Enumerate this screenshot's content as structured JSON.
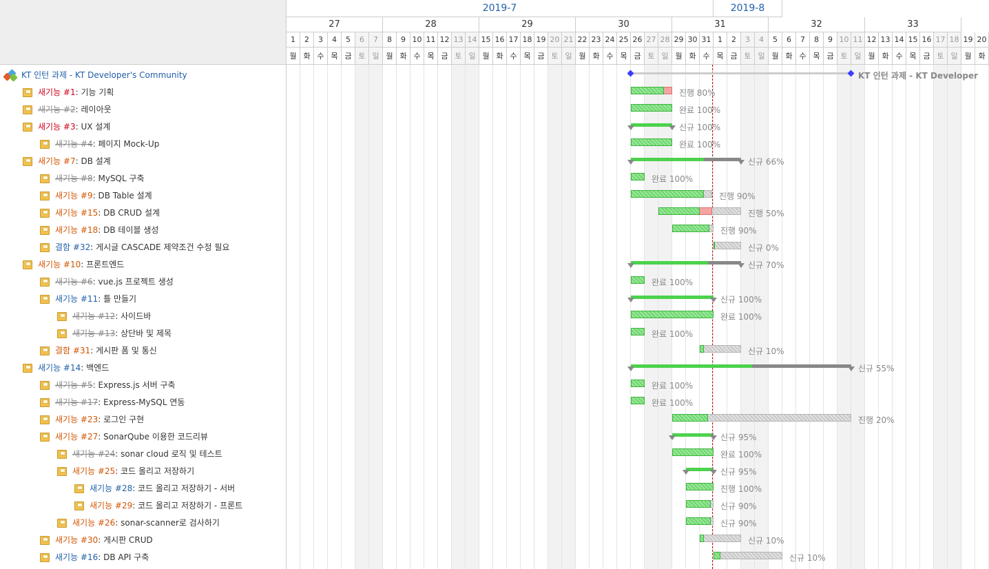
{
  "months": [
    {
      "label": "2019-7",
      "from": 0,
      "to": 31
    },
    {
      "label": "2019-8",
      "from": 31,
      "to": 36
    }
  ],
  "weeks": [
    {
      "label": "27",
      "from": 0,
      "to": 7
    },
    {
      "label": "28",
      "from": 7,
      "to": 14
    },
    {
      "label": "29",
      "from": 14,
      "to": 21
    },
    {
      "label": "30",
      "from": 21,
      "to": 28
    },
    {
      "label": "31",
      "from": 28,
      "to": 35
    },
    {
      "label": "32",
      "from": 35,
      "to": 42
    },
    {
      "label": "33",
      "from": 42,
      "to": 49
    }
  ],
  "days": [
    "1",
    "2",
    "3",
    "4",
    "5",
    "6",
    "7",
    "8",
    "9",
    "10",
    "11",
    "12",
    "13",
    "14",
    "15",
    "16",
    "17",
    "18",
    "19",
    "20",
    "21",
    "22",
    "23",
    "24",
    "25",
    "26",
    "27",
    "28",
    "29",
    "30",
    "31",
    "1",
    "2",
    "3",
    "4",
    "5",
    "6",
    "7",
    "8",
    "9",
    "10",
    "11",
    "12",
    "13",
    "14",
    "15",
    "16",
    "17",
    "18",
    "19",
    "20"
  ],
  "dows": [
    "월",
    "화",
    "수",
    "목",
    "금",
    "토",
    "일"
  ],
  "today_index": 30.9,
  "project": {
    "name": "KT 인턴 과제 - KT Developer's Community",
    "bar_label": "KT 인턴 과제 - KT Developer",
    "start": 25,
    "end": 41
  },
  "issues": [
    {
      "depth": 1,
      "tracker": "새기능",
      "num": "#1",
      "cls": "red",
      "subject": "기능 기획",
      "start": 25,
      "end": 28,
      "done": 0.8,
      "late": true,
      "type": "task",
      "status": "진행",
      "pct": "80%"
    },
    {
      "depth": 1,
      "tracker": "새기능",
      "num": "#2",
      "cls": "closed",
      "subject": "레이아웃",
      "start": 25,
      "end": 28,
      "done": 1,
      "type": "task",
      "status": "완료",
      "pct": "100%"
    },
    {
      "depth": 1,
      "tracker": "새기능",
      "num": "#3",
      "cls": "red",
      "subject": "UX 설계",
      "start": 25,
      "end": 28,
      "done": 1,
      "type": "parent",
      "status": "신규",
      "pct": "100%"
    },
    {
      "depth": 2,
      "tracker": "새기능",
      "num": "#4",
      "cls": "closed",
      "subject": "페이지 Mock-Up",
      "start": 25,
      "end": 28,
      "done": 1,
      "type": "task",
      "status": "완료",
      "pct": "100%"
    },
    {
      "depth": 1,
      "tracker": "새기능",
      "num": "#7",
      "cls": "orange",
      "subject": "DB 설계",
      "start": 25,
      "end": 33,
      "done": 0.66,
      "type": "parent",
      "status": "신규",
      "pct": "66%"
    },
    {
      "depth": 2,
      "tracker": "새기능",
      "num": "#8",
      "cls": "closed",
      "subject": "MySQL 구축",
      "start": 25,
      "end": 26,
      "done": 1,
      "type": "task",
      "status": "완료",
      "pct": "100%"
    },
    {
      "depth": 2,
      "tracker": "새기능",
      "num": "#9",
      "cls": "orange",
      "subject": "DB Table 설계",
      "start": 25,
      "end": 30.9,
      "done": 0.9,
      "type": "task",
      "status": "진행",
      "pct": "90%"
    },
    {
      "depth": 2,
      "tracker": "새기능",
      "num": "#15",
      "cls": "orange",
      "subject": "DB CRUD 설계",
      "start": 27,
      "end": 33,
      "done": 0.5,
      "late": true,
      "lateEnd": 30.9,
      "type": "task",
      "status": "진행",
      "pct": "50%"
    },
    {
      "depth": 2,
      "tracker": "새기능",
      "num": "#18",
      "cls": "orange",
      "subject": "DB 테이블 생성",
      "start": 28,
      "end": 31,
      "done": 0.9,
      "type": "task",
      "status": "진행",
      "pct": "90%"
    },
    {
      "depth": 2,
      "tracker": "결함",
      "num": "#32",
      "cls": "blue",
      "subject": "게시글 CASCADE 제약조건 수정 필요",
      "start": 31,
      "end": 33,
      "done": 0,
      "type": "task",
      "status": "신규",
      "pct": "0%"
    },
    {
      "depth": 1,
      "tracker": "새기능",
      "num": "#10",
      "cls": "orange",
      "subject": "프론트엔드",
      "start": 25,
      "end": 33,
      "done": 0.7,
      "type": "parent",
      "status": "신규",
      "pct": "70%"
    },
    {
      "depth": 2,
      "tracker": "새기능",
      "num": "#6",
      "cls": "closed",
      "subject": "vue.js 프로젝트 생성",
      "start": 25,
      "end": 26,
      "done": 1,
      "type": "task",
      "status": "완료",
      "pct": "100%"
    },
    {
      "depth": 2,
      "tracker": "새기능",
      "num": "#11",
      "cls": "blue",
      "subject": "틀 만들기",
      "start": 25,
      "end": 31,
      "done": 1,
      "type": "parent",
      "status": "신규",
      "pct": "100%"
    },
    {
      "depth": 3,
      "tracker": "새기능",
      "num": "#12",
      "cls": "closed",
      "subject": "사이드바",
      "start": 25,
      "end": 31,
      "done": 1,
      "type": "task",
      "status": "완료",
      "pct": "100%"
    },
    {
      "depth": 3,
      "tracker": "새기능",
      "num": "#13",
      "cls": "closed",
      "subject": "상단바 및 제목",
      "start": 25,
      "end": 26,
      "done": 1,
      "type": "task",
      "status": "완료",
      "pct": "100%"
    },
    {
      "depth": 2,
      "tracker": "결함",
      "num": "#31",
      "cls": "orange",
      "subject": "게시판 폼 및 통신",
      "start": 30,
      "end": 33,
      "done": 0.1,
      "type": "task",
      "status": "신규",
      "pct": "10%"
    },
    {
      "depth": 1,
      "tracker": "새기능",
      "num": "#14",
      "cls": "blue",
      "subject": "백엔드",
      "start": 25,
      "end": 41,
      "done": 0.55,
      "type": "parent",
      "status": "신규",
      "pct": "55%"
    },
    {
      "depth": 2,
      "tracker": "새기능",
      "num": "#5",
      "cls": "closed",
      "subject": "Express.js 서버 구축",
      "start": 25,
      "end": 26,
      "done": 1,
      "type": "task",
      "status": "완료",
      "pct": "100%"
    },
    {
      "depth": 2,
      "tracker": "새기능",
      "num": "#17",
      "cls": "closed",
      "subject": "Express-MySQL 연동",
      "start": 25,
      "end": 26,
      "done": 1,
      "type": "task",
      "status": "완료",
      "pct": "100%"
    },
    {
      "depth": 2,
      "tracker": "새기능",
      "num": "#23",
      "cls": "orange",
      "subject": "로그인 구현",
      "start": 28,
      "end": 41,
      "done": 0.2,
      "type": "task",
      "status": "진행",
      "pct": "20%"
    },
    {
      "depth": 2,
      "tracker": "새기능",
      "num": "#27",
      "cls": "orange",
      "subject": "SonarQube 이용한 코드리뷰",
      "start": 28,
      "end": 31,
      "done": 0.95,
      "type": "parent",
      "status": "신규",
      "pct": "95%"
    },
    {
      "depth": 3,
      "tracker": "새기능",
      "num": "#24",
      "cls": "closed",
      "subject": "sonar cloud 로직 및 테스트",
      "start": 28,
      "end": 31,
      "done": 1,
      "type": "task",
      "status": "완료",
      "pct": "100%"
    },
    {
      "depth": 3,
      "tracker": "새기능",
      "num": "#25",
      "cls": "orange",
      "subject": "코드 올리고 저장하기",
      "start": 29,
      "end": 31,
      "done": 0.95,
      "type": "parent",
      "status": "신규",
      "pct": "95%"
    },
    {
      "depth": 4,
      "tracker": "새기능",
      "num": "#28",
      "cls": "blue",
      "subject": "코드 올리고 저장하기 - 서버",
      "start": 29,
      "end": 31,
      "done": 1,
      "type": "task",
      "status": "진행",
      "pct": "100%"
    },
    {
      "depth": 4,
      "tracker": "새기능",
      "num": "#29",
      "cls": "orange",
      "subject": "코드 올리고 저장하기 - 프론트",
      "start": 29,
      "end": 31,
      "done": 0.9,
      "type": "task",
      "status": "신규",
      "pct": "90%"
    },
    {
      "depth": 3,
      "tracker": "새기능",
      "num": "#26",
      "cls": "orange",
      "subject": "sonar-scanner로 검사하기",
      "start": 29,
      "end": 31,
      "done": 0.9,
      "type": "task",
      "status": "신규",
      "pct": "90%"
    },
    {
      "depth": 2,
      "tracker": "새기능",
      "num": "#30",
      "cls": "orange",
      "subject": "게시판 CRUD",
      "start": 30,
      "end": 33,
      "done": 0.1,
      "type": "task",
      "status": "신규",
      "pct": "10%"
    },
    {
      "depth": 2,
      "tracker": "새기능",
      "num": "#16",
      "cls": "blue",
      "subject": "DB API 구축",
      "start": 31,
      "end": 36,
      "done": 0.1,
      "type": "task",
      "status": "신규",
      "pct": "10%"
    }
  ]
}
